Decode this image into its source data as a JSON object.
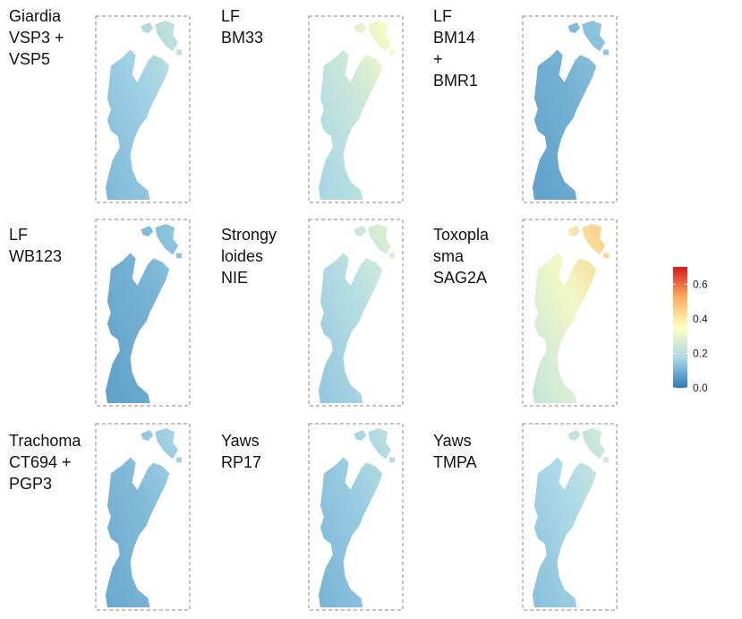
{
  "chart_data": {
    "type": "heatmap",
    "colorbar": {
      "ticks": [
        "0.6",
        "0.4",
        "0.2",
        "0.0"
      ],
      "tick_values": [
        0.6,
        0.4,
        0.2,
        0.0
      ],
      "range": [
        0,
        0.7
      ],
      "stops": [
        "#2c7bb6",
        "#abd9e9",
        "#ffffbf",
        "#fdae61",
        "#d7191c"
      ]
    },
    "panels": [
      {
        "label": [
          "Giardia",
          "VSP3 +",
          "VSP5"
        ],
        "mean": 0.16
      },
      {
        "label": [
          "LF",
          "BM33"
        ],
        "mean": 0.24
      },
      {
        "label": [
          "LF",
          "BM14",
          "+",
          "BMR1"
        ],
        "mean": 0.1
      },
      {
        "label": [
          "LF",
          "WB123"
        ],
        "mean": 0.1
      },
      {
        "label": [
          "Strongy",
          "loides",
          "NIE"
        ],
        "mean": 0.2
      },
      {
        "label": [
          "Toxopla",
          "sma",
          "SAG2A"
        ],
        "mean": 0.32
      },
      {
        "label": [
          "Trachoma",
          "CT694 +",
          "PGP3"
        ],
        "mean": 0.12
      },
      {
        "label": [
          "Yaws",
          "RP17"
        ],
        "mean": 0.15
      },
      {
        "label": [
          "Yaws",
          "TMPA"
        ],
        "mean": 0.18
      }
    ]
  }
}
